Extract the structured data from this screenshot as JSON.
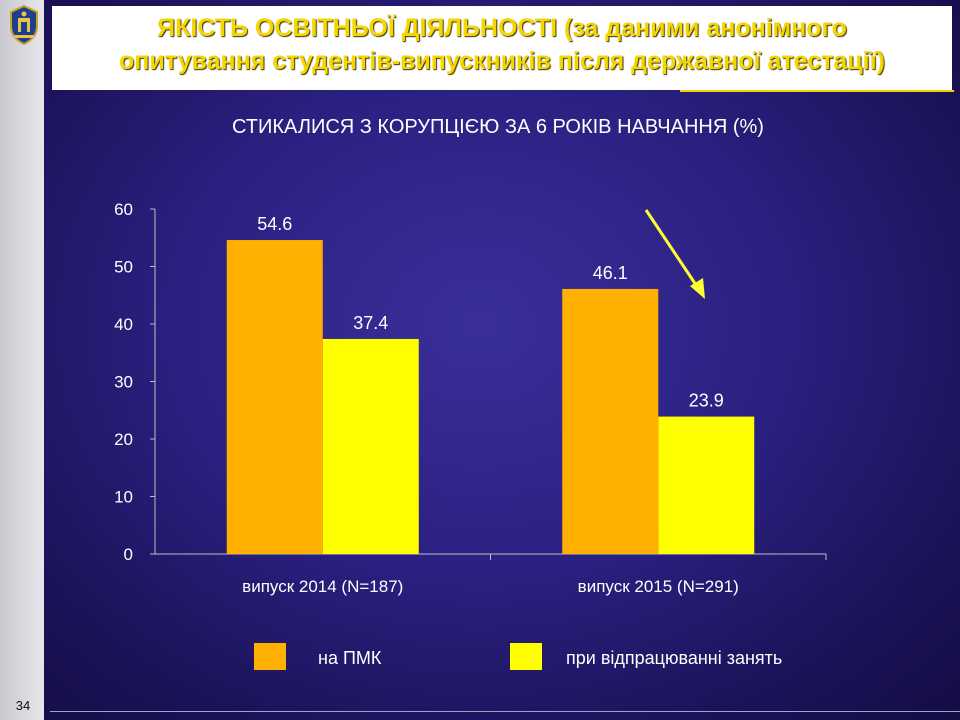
{
  "slide": {
    "title": "ЯКІСТЬ ОСВІТНЬОЇ ДІЯЛЬНОСТІ (за даними анонімного опитування студентів-випускників після державної атестації)",
    "number": "34"
  },
  "colors": {
    "accent": "#f5d100",
    "series1": "#ffb000",
    "series2": "#ffff00",
    "background": "#2a2080"
  },
  "chart_data": {
    "type": "bar",
    "title": "СТИКАЛИСЯ З КОРУПЦІЄЮ ЗА 6 РОКІВ НАВЧАННЯ (%)",
    "categories": [
      "випуск 2014 (N=187)",
      "випуск 2015 (N=291)"
    ],
    "series": [
      {
        "name": "на ПМК",
        "values": [
          54.6,
          46.1
        ],
        "color": "#ffb000"
      },
      {
        "name": "при відпрацюванні занять",
        "values": [
          37.4,
          23.9
        ],
        "color": "#ffff00"
      }
    ],
    "yticks": [
      0,
      10,
      20,
      30,
      40,
      50,
      60
    ],
    "ylim": [
      0,
      60
    ],
    "grid": false,
    "legend_position": "bottom",
    "annotation": "downward-trend-arrow"
  }
}
